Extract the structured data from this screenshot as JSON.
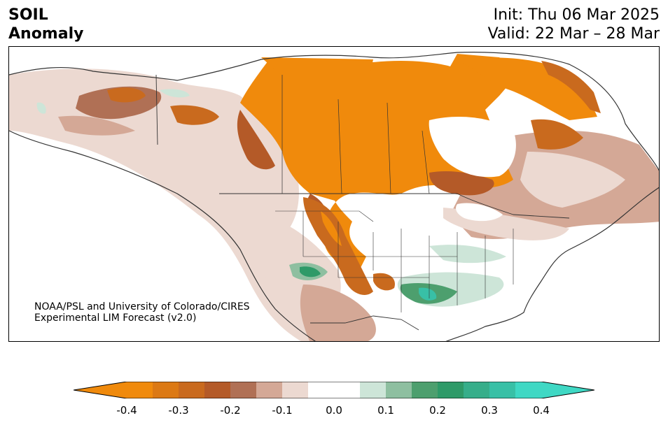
{
  "title": {
    "left_line1": "SOIL",
    "left_line2": "Anomaly",
    "init": "Init: Thu 06 Mar 2025",
    "valid": "Valid: 22 Mar – 28 Mar"
  },
  "credit": {
    "line1": "NOAA/PSL and University of Colorado/CIRES",
    "line2": "Experimental LIM Forecast (v2.0)"
  },
  "colorbar": {
    "ticks": [
      "-0.4",
      "-0.3",
      "-0.2",
      "-0.1",
      "0.0",
      "0.1",
      "0.2",
      "0.3",
      "0.4"
    ],
    "colors": [
      "#f08a0c",
      "#dc7914",
      "#c96a1e",
      "#b45a28",
      "#b07055",
      "#d4a896",
      "#ecd9d1",
      "#ffffff",
      "#ffffff",
      "#cde5d8",
      "#8ebfa0",
      "#4d9f6e",
      "#2e9a68",
      "#36ae8a",
      "#38c0a6",
      "#3fd8c4"
    ],
    "under_color": "#f08a0c",
    "over_color": "#3fd8c4"
  },
  "map": {
    "region": "North America",
    "variable": "Soil moisture anomaly"
  }
}
